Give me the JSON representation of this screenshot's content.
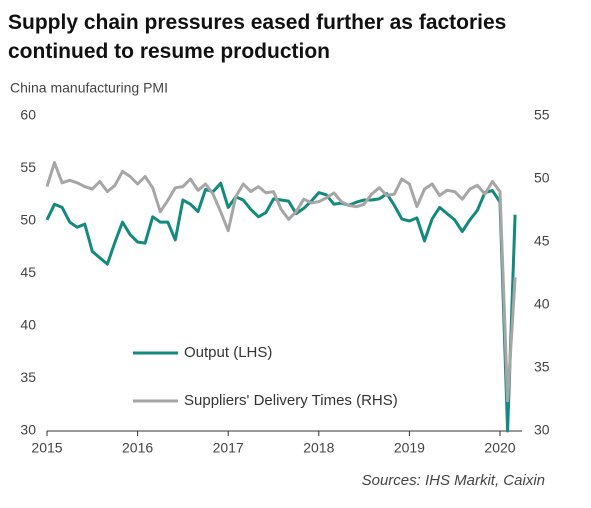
{
  "chart_data": {
    "type": "line",
    "title": "Supply chain pressures eased further as factories continued to resume production",
    "subtitle": "China manufacturing PMI",
    "source": "Sources: IHS Markit, Caixin",
    "categories": [
      "2015",
      null,
      null,
      null,
      null,
      null,
      null,
      null,
      null,
      null,
      null,
      null,
      "2016",
      null,
      null,
      null,
      null,
      null,
      null,
      null,
      null,
      null,
      null,
      null,
      "2017",
      null,
      null,
      null,
      null,
      null,
      null,
      null,
      null,
      null,
      null,
      null,
      "2018",
      null,
      null,
      null,
      null,
      null,
      null,
      null,
      null,
      null,
      null,
      null,
      "2019",
      null,
      null,
      null,
      null,
      null,
      null,
      null,
      null,
      null,
      null,
      null,
      "2020",
      null,
      null
    ],
    "series": [
      {
        "name": "Output (LHS)",
        "color": "#138a7c",
        "axis": "y",
        "values": [
          50.1,
          51.6,
          51.3,
          49.9,
          49.4,
          49.7,
          47.1,
          46.5,
          45.9,
          48.0,
          49.9,
          48.7,
          48.0,
          47.9,
          50.4,
          49.9,
          49.9,
          48.2,
          52.0,
          51.6,
          50.9,
          53.0,
          52.8,
          53.6,
          51.3,
          52.3,
          52.0,
          51.1,
          50.4,
          50.8,
          52.1,
          52.0,
          51.9,
          50.7,
          51.2,
          51.9,
          52.7,
          52.5,
          51.6,
          51.7,
          51.5,
          51.8,
          52.0,
          52.0,
          52.1,
          52.6,
          51.5,
          50.2,
          50.0,
          50.3,
          48.1,
          50.2,
          51.3,
          50.7,
          50.1,
          49.0,
          50.1,
          51.0,
          52.7,
          52.9,
          51.8,
          30.0,
          50.6
        ]
      },
      {
        "name": "Suppliers' Delivery Times (RHS)",
        "color": "#a6a6a6",
        "axis": "y2",
        "values": [
          49.4,
          51.3,
          49.7,
          49.9,
          49.7,
          49.4,
          49.2,
          49.8,
          49.0,
          49.5,
          50.6,
          50.2,
          49.6,
          50.2,
          49.3,
          47.4,
          48.3,
          49.3,
          49.4,
          50.0,
          49.1,
          49.6,
          48.8,
          47.4,
          45.9,
          48.6,
          49.6,
          49.0,
          49.4,
          48.9,
          49.0,
          47.6,
          46.8,
          47.4,
          48.4,
          48.1,
          48.2,
          48.5,
          48.9,
          48.2,
          47.9,
          47.8,
          48.0,
          48.8,
          49.3,
          48.7,
          48.8,
          50.0,
          49.6,
          47.8,
          49.2,
          49.6,
          48.7,
          49.1,
          49.0,
          48.4,
          49.2,
          49.5,
          48.8,
          49.8,
          49.0,
          32.4,
          42.2
        ]
      }
    ],
    "ylim": [
      30,
      60
    ],
    "yticks": [
      30,
      35,
      40,
      45,
      50,
      55,
      60
    ],
    "y2lim": [
      30,
      55
    ],
    "y2ticks": [
      30,
      35,
      40,
      45,
      50,
      55
    ]
  }
}
